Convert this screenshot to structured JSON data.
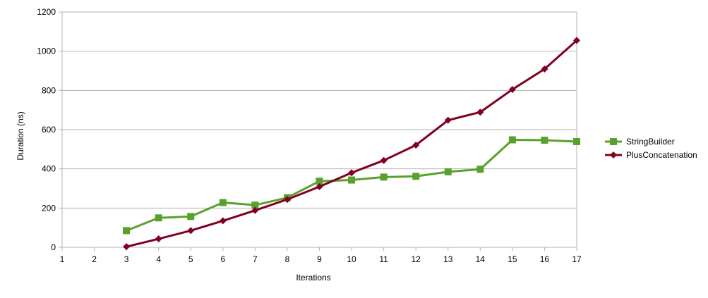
{
  "chart_data": {
    "type": "line",
    "xlabel": "Iterations",
    "ylabel": "Duration (ns)",
    "x": [
      1,
      2,
      3,
      4,
      5,
      6,
      7,
      8,
      9,
      10,
      11,
      12,
      13,
      14,
      15,
      16,
      17
    ],
    "xlim": [
      1,
      17
    ],
    "ylim": [
      0,
      1200
    ],
    "yticks": [
      0,
      200,
      400,
      600,
      800,
      1000,
      1200
    ],
    "grid": "horizontal",
    "legend": "right",
    "series": [
      {
        "name": "StringBuilder",
        "color": "#5aa02c",
        "marker": "square",
        "x": [
          3,
          4,
          5,
          6,
          7,
          8,
          9,
          10,
          11,
          12,
          13,
          14,
          15,
          16,
          17
        ],
        "values": [
          85,
          150,
          157,
          228,
          215,
          253,
          337,
          343,
          358,
          362,
          385,
          398,
          548,
          546,
          539
        ]
      },
      {
        "name": "PlusConcatenation",
        "color": "#800020",
        "marker": "diamond",
        "x": [
          3,
          4,
          5,
          6,
          7,
          8,
          9,
          10,
          11,
          12,
          13,
          14,
          15,
          16,
          17
        ],
        "values": [
          3,
          43,
          85,
          135,
          188,
          244,
          309,
          380,
          443,
          521,
          648,
          689,
          805,
          909,
          1055
        ]
      }
    ]
  }
}
